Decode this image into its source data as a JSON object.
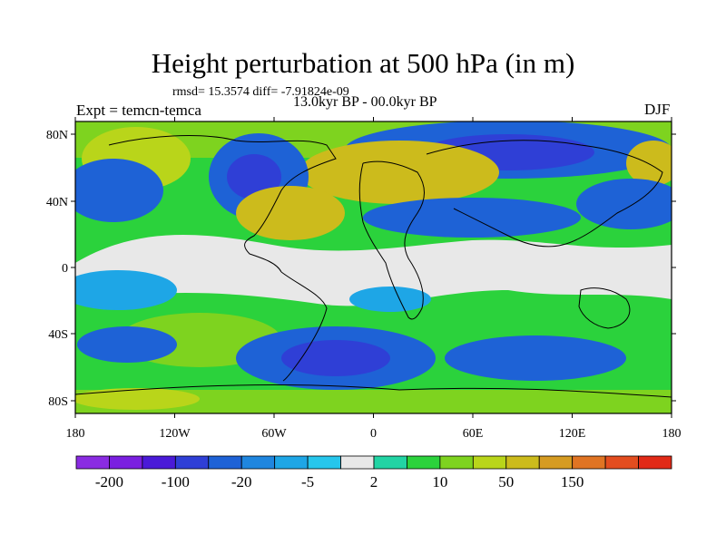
{
  "title": "Height perturbation at 500 hPa (in m)",
  "stats_text": "rmsd= 15.3574 diff= -7.91824e-09",
  "period_text": "13.0kyr BP - 00.0kyr BP",
  "experiment_text": "Expt = temcn-temca",
  "season_text": "DJF",
  "lat_ticks": [
    "80N",
    "40N",
    "0",
    "40S",
    "80S"
  ],
  "lon_ticks": [
    "180",
    "120W",
    "60W",
    "0",
    "60E",
    "120E",
    "180"
  ],
  "colorbar": {
    "colors": [
      "#8a2be2",
      "#7a1fe0",
      "#4a1ad8",
      "#2f3fd6",
      "#1e62d6",
      "#1f86df",
      "#1ea6e6",
      "#26c6ec",
      "#e8e8e8",
      "#22d4a4",
      "#2bd23c",
      "#7ed31f",
      "#b9d51a",
      "#ccbb1c",
      "#d59b22",
      "#e07423",
      "#e34d1f",
      "#e12a17"
    ],
    "labels": [
      "-200",
      "-100",
      "-20",
      "-5",
      "2",
      "10",
      "50",
      "150"
    ]
  },
  "regions": [
    {
      "name": "north-pacific-low",
      "value": -20
    },
    {
      "name": "north-america-low",
      "value": -100
    },
    {
      "name": "north-atlantic-high",
      "value": 50
    },
    {
      "name": "siberia-low",
      "value": -100
    },
    {
      "name": "arctic-high",
      "value": 10
    },
    {
      "name": "tropical-band",
      "value": 2
    },
    {
      "name": "southern-ocean-low",
      "value": -20
    },
    {
      "name": "antarctic-high",
      "value": 10
    }
  ]
}
